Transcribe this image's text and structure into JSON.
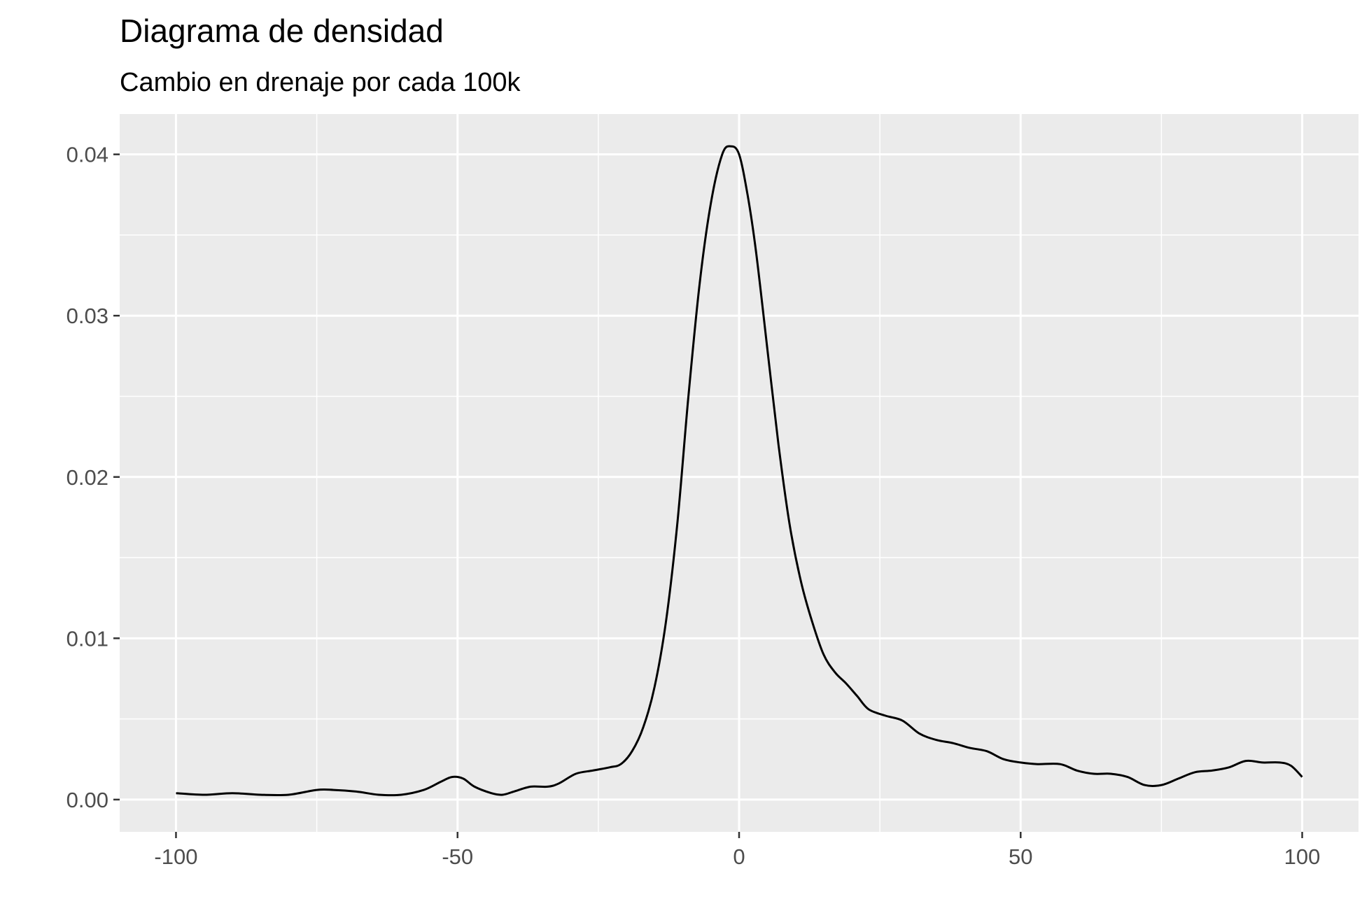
{
  "chart_data": {
    "type": "line",
    "title": "Diagrama de densidad",
    "subtitle": "Cambio en drenaje por cada 100k",
    "xlabel": "",
    "ylabel": "",
    "xlim": [
      -110,
      110
    ],
    "ylim": [
      -0.002,
      0.0425
    ],
    "x_ticks": [
      -100,
      -50,
      0,
      50,
      100
    ],
    "x_tick_labels": [
      "-100",
      "-50",
      "0",
      "50",
      "100"
    ],
    "y_ticks": [
      0,
      0.01,
      0.02,
      0.03,
      0.04
    ],
    "y_tick_labels": [
      "0.00",
      "0.01",
      "0.02",
      "0.03",
      "0.04"
    ],
    "grid": true,
    "legend": "none",
    "series": [
      {
        "color": "#000000",
        "points": [
          [
            -100,
            0.0004
          ],
          [
            -95,
            0.0003
          ],
          [
            -90,
            0.0004
          ],
          [
            -85,
            0.0003
          ],
          [
            -80,
            0.0003
          ],
          [
            -75,
            0.0006
          ],
          [
            -72,
            0.0006
          ],
          [
            -68,
            0.0005
          ],
          [
            -64,
            0.0003
          ],
          [
            -60,
            0.0003
          ],
          [
            -56,
            0.0006
          ],
          [
            -53,
            0.0011
          ],
          [
            -51,
            0.0014
          ],
          [
            -49,
            0.0013
          ],
          [
            -47,
            0.0008
          ],
          [
            -44,
            0.0004
          ],
          [
            -42,
            0.0003
          ],
          [
            -40,
            0.0005
          ],
          [
            -37,
            0.0008
          ],
          [
            -34,
            0.0008
          ],
          [
            -32,
            0.001
          ],
          [
            -29,
            0.0016
          ],
          [
            -26,
            0.0018
          ],
          [
            -23,
            0.002
          ],
          [
            -21,
            0.0022
          ],
          [
            -19,
            0.003
          ],
          [
            -17,
            0.0045
          ],
          [
            -15,
            0.007
          ],
          [
            -13,
            0.011
          ],
          [
            -11,
            0.017
          ],
          [
            -9,
            0.025
          ],
          [
            -7,
            0.032
          ],
          [
            -5,
            0.037
          ],
          [
            -3,
            0.04
          ],
          [
            -1.5,
            0.0405
          ],
          [
            0,
            0.04
          ],
          [
            1.5,
            0.0375
          ],
          [
            3,
            0.034
          ],
          [
            5,
            0.028
          ],
          [
            7,
            0.022
          ],
          [
            9,
            0.017
          ],
          [
            11,
            0.0135
          ],
          [
            13,
            0.011
          ],
          [
            15,
            0.009
          ],
          [
            17,
            0.0079
          ],
          [
            19,
            0.0072
          ],
          [
            21,
            0.0064
          ],
          [
            23,
            0.0056
          ],
          [
            26,
            0.0052
          ],
          [
            29,
            0.0049
          ],
          [
            32,
            0.0041
          ],
          [
            35,
            0.0037
          ],
          [
            38,
            0.0035
          ],
          [
            41,
            0.0032
          ],
          [
            44,
            0.003
          ],
          [
            47,
            0.0025
          ],
          [
            50,
            0.0023
          ],
          [
            53,
            0.0022
          ],
          [
            57,
            0.0022
          ],
          [
            60,
            0.0018
          ],
          [
            63,
            0.0016
          ],
          [
            66,
            0.0016
          ],
          [
            69,
            0.0014
          ],
          [
            72,
            0.0009
          ],
          [
            75,
            0.0009
          ],
          [
            78,
            0.0013
          ],
          [
            81,
            0.0017
          ],
          [
            84,
            0.0018
          ],
          [
            87,
            0.002
          ],
          [
            90,
            0.0024
          ],
          [
            93,
            0.0023
          ],
          [
            96,
            0.0023
          ],
          [
            98,
            0.0021
          ],
          [
            100,
            0.0014
          ]
        ]
      }
    ]
  }
}
